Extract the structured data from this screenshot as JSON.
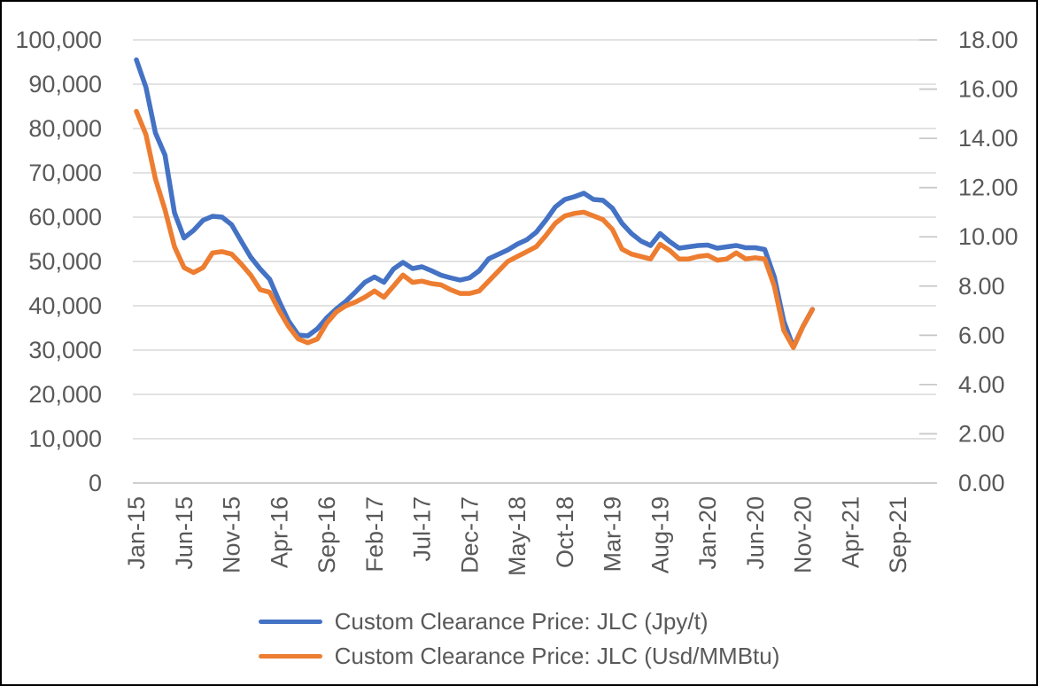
{
  "chart_data": {
    "type": "line",
    "title": "",
    "xlabel": "",
    "ylabel_left": "",
    "ylabel_right": "",
    "grid": true,
    "legend_position": "bottom",
    "colors": {
      "grid": "#D9D9D9",
      "axis": "#BFBFBF",
      "tick": "#C9C9C9",
      "text": "#595959"
    },
    "x_axis": {
      "tick_labels": [
        "Jan-15",
        "Jun-15",
        "Nov-15",
        "Apr-16",
        "Sep-16",
        "Feb-17",
        "Jul-17",
        "Dec-17",
        "May-18",
        "Oct-18",
        "Mar-19",
        "Aug-19",
        "Jan-20",
        "Jun-20",
        "Nov-20",
        "Apr-21",
        "Sep-21"
      ]
    },
    "left_axis": {
      "min": 0,
      "max": 100000,
      "step": 10000,
      "labels": [
        "0",
        "10,000",
        "20,000",
        "30,000",
        "40,000",
        "50,000",
        "60,000",
        "70,000",
        "80,000",
        "90,000",
        "100,000"
      ]
    },
    "right_axis": {
      "min": 0,
      "max": 18,
      "step": 2,
      "labels": [
        "0.00",
        "2.00",
        "4.00",
        "6.00",
        "8.00",
        "10.00",
        "12.00",
        "14.00",
        "16.00",
        "18.00"
      ]
    },
    "months": [
      "Jan-15",
      "Feb-15",
      "Mar-15",
      "Apr-15",
      "May-15",
      "Jun-15",
      "Jul-15",
      "Aug-15",
      "Sep-15",
      "Oct-15",
      "Nov-15",
      "Dec-15",
      "Jan-16",
      "Feb-16",
      "Mar-16",
      "Apr-16",
      "May-16",
      "Jun-16",
      "Jul-16",
      "Aug-16",
      "Sep-16",
      "Oct-16",
      "Nov-16",
      "Dec-16",
      "Jan-17",
      "Feb-17",
      "Mar-17",
      "Apr-17",
      "May-17",
      "Jun-17",
      "Jul-17",
      "Aug-17",
      "Sep-17",
      "Oct-17",
      "Nov-17",
      "Dec-17",
      "Jan-18",
      "Feb-18",
      "Mar-18",
      "Apr-18",
      "May-18",
      "Jun-18",
      "Jul-18",
      "Aug-18",
      "Sep-18",
      "Oct-18",
      "Nov-18",
      "Dec-18",
      "Jan-19",
      "Feb-19",
      "Mar-19",
      "Apr-19",
      "May-19",
      "Jun-19",
      "Jul-19",
      "Aug-19",
      "Sep-19",
      "Oct-19",
      "Nov-19",
      "Dec-19",
      "Jan-20",
      "Feb-20",
      "Mar-20",
      "Apr-20",
      "May-20",
      "Jun-20",
      "Jul-20",
      "Aug-20",
      "Sep-20",
      "Oct-20",
      "Nov-20",
      "Dec-20"
    ],
    "series": [
      {
        "name": "Custom Clearance Price: JLC (Jpy/t)",
        "color": "#4472C4",
        "axis": "left",
        "values": [
          95500,
          89300,
          79000,
          74000,
          61000,
          55300,
          57000,
          59300,
          60200,
          60000,
          58300,
          54600,
          51000,
          48300,
          46000,
          41000,
          36500,
          33400,
          33200,
          34800,
          37300,
          39300,
          41000,
          43100,
          45300,
          46500,
          45300,
          48300,
          49800,
          48400,
          48800,
          47900,
          46900,
          46300,
          45800,
          46300,
          47900,
          50600,
          51600,
          52600,
          53900,
          54900,
          56600,
          59300,
          62300,
          64000,
          64600,
          65400,
          64000,
          63800,
          62000,
          58600,
          56300,
          54600,
          53600,
          56300,
          54500,
          53000,
          53300,
          53600,
          53700,
          53000,
          53300,
          53600,
          53100,
          53100,
          52700,
          46500,
          36500,
          30700,
          35300,
          39200
        ]
      },
      {
        "name": "Custom Clearance Price: JLC (Usd/MMBtu)",
        "color": "#ED7D31",
        "axis": "right",
        "values": [
          15.1,
          14.15,
          12.35,
          11.1,
          9.6,
          8.75,
          8.55,
          8.75,
          9.35,
          9.4,
          9.3,
          8.9,
          8.45,
          7.85,
          7.75,
          7.0,
          6.35,
          5.85,
          5.7,
          5.85,
          6.5,
          6.95,
          7.2,
          7.35,
          7.55,
          7.8,
          7.55,
          8.0,
          8.45,
          8.15,
          8.2,
          8.1,
          8.05,
          7.85,
          7.7,
          7.7,
          7.8,
          8.2,
          8.6,
          9.0,
          9.2,
          9.4,
          9.6,
          10.05,
          10.55,
          10.85,
          10.95,
          11.0,
          10.85,
          10.7,
          10.3,
          9.5,
          9.3,
          9.2,
          9.1,
          9.7,
          9.45,
          9.1,
          9.1,
          9.2,
          9.25,
          9.05,
          9.1,
          9.35,
          9.1,
          9.15,
          9.1,
          8.0,
          6.2,
          5.5,
          6.35,
          7.05
        ]
      }
    ]
  },
  "legend": {
    "items": [
      {
        "label": "Custom Clearance Price: JLC (Jpy/t)"
      },
      {
        "label": "Custom Clearance Price: JLC (Usd/MMBtu)"
      }
    ]
  }
}
